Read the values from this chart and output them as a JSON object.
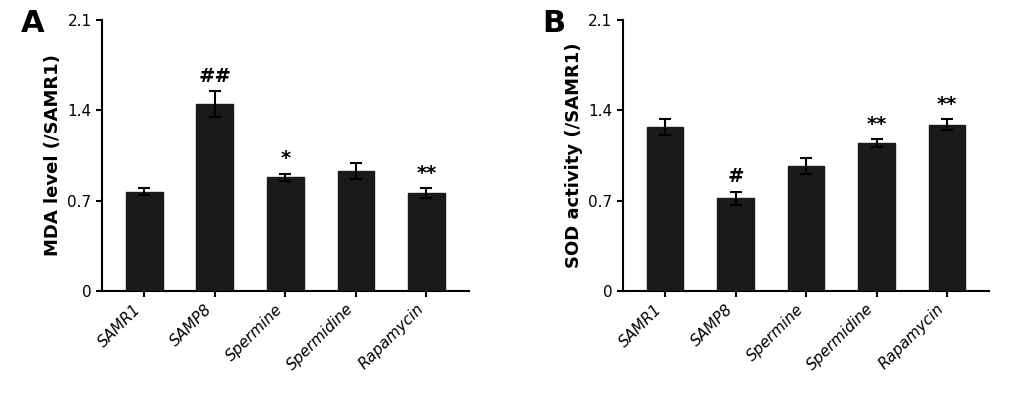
{
  "panel_A": {
    "label": "A",
    "categories": [
      "SAMR1",
      "SAMP8",
      "Spermine",
      "Spermidine",
      "Rapamycin"
    ],
    "values": [
      0.77,
      1.45,
      0.88,
      0.93,
      0.76
    ],
    "errors": [
      0.03,
      0.1,
      0.03,
      0.06,
      0.04
    ],
    "ylabel": "MDA level (/SAMR1)",
    "ylim": [
      0,
      2.1
    ],
    "yticks": [
      0,
      0.7,
      1.4,
      2.1
    ],
    "annotations": [
      "",
      "##",
      "*",
      "",
      "**"
    ]
  },
  "panel_B": {
    "label": "B",
    "categories": [
      "SAMR1",
      "SAMP8",
      "Spermine",
      "Spermidine",
      "Rapamycin"
    ],
    "values": [
      1.27,
      0.72,
      0.97,
      1.15,
      1.29
    ],
    "errors": [
      0.06,
      0.05,
      0.06,
      0.03,
      0.04
    ],
    "ylabel": "SOD activity (/SAMR1)",
    "ylim": [
      0,
      2.1
    ],
    "yticks": [
      0,
      0.7,
      1.4,
      2.1
    ],
    "annotations": [
      "",
      "#",
      "",
      "**",
      "**"
    ]
  },
  "bar_color": "#1a1a1a",
  "bar_width": 0.52,
  "error_color": "black",
  "error_capsize": 4,
  "error_linewidth": 1.5,
  "ylabel_fontsize": 13,
  "panel_label_fontsize": 22,
  "tick_fontsize": 11,
  "ann_fontsize": 14,
  "background_color": "#ffffff"
}
